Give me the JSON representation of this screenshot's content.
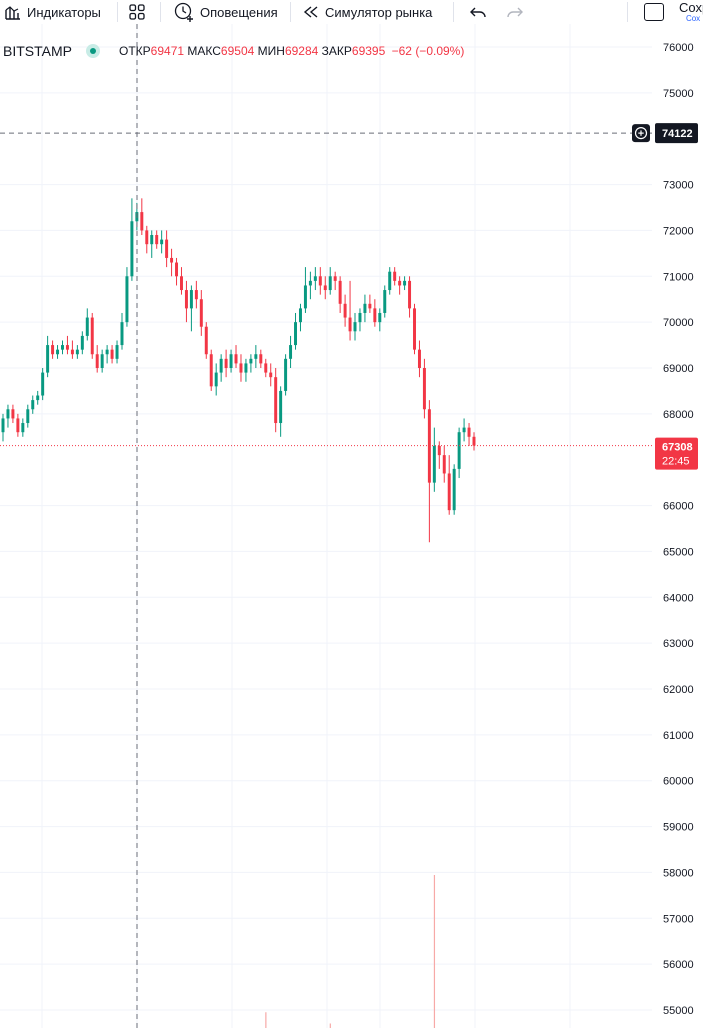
{
  "toolbar": {
    "indicators_label": "Индикаторы",
    "alerts_label": "Оповещения",
    "replay_label": "Симулятор рынка",
    "save_label": "Сохр",
    "save_sublabel": "Сох",
    "icons": [
      "indicators-icon",
      "templates-icon",
      "alert-clock-icon",
      "replay-icon",
      "undo-icon",
      "redo-icon"
    ]
  },
  "legend": {
    "symbol": "BITSTAMP",
    "status_color": "#089981",
    "open_label": "ОТКР",
    "open_value": "69471",
    "high_label": "МАКС",
    "high_value": "69504",
    "low_label": "МИН",
    "low_value": "69284",
    "close_label": "ЗАКР",
    "close_value": "69395",
    "change": "−62 (−0.09%)"
  },
  "crosshair": {
    "price_label": "74122",
    "add_icon": "plus-circle-icon"
  },
  "last_price": {
    "price": "67308",
    "countdown": "22:45",
    "color": "#f23645"
  },
  "chart_data": {
    "type": "candlestick",
    "price_axis": {
      "ticks": [
        76000,
        75000,
        73000,
        72000,
        71000,
        70000,
        69000,
        68000,
        66000,
        65000,
        64000,
        63000,
        62000,
        61000,
        60000,
        59000,
        58000,
        57000,
        56000,
        55000
      ],
      "range": [
        54800,
        76300
      ]
    },
    "up_color": "#089981",
    "down_color": "#f23645",
    "crosshair_price": 74122,
    "last_price": 67308,
    "candles": [
      {
        "o": 67600,
        "h": 68000,
        "l": 67400,
        "c": 67900
      },
      {
        "o": 67900,
        "h": 68200,
        "l": 67700,
        "c": 68100
      },
      {
        "o": 68100,
        "h": 68200,
        "l": 67800,
        "c": 67900
      },
      {
        "o": 67900,
        "h": 68000,
        "l": 67500,
        "c": 67600
      },
      {
        "o": 67600,
        "h": 67900,
        "l": 67500,
        "c": 67800
      },
      {
        "o": 67800,
        "h": 68200,
        "l": 67700,
        "c": 68100
      },
      {
        "o": 68100,
        "h": 68400,
        "l": 68000,
        "c": 68300
      },
      {
        "o": 68300,
        "h": 68500,
        "l": 68200,
        "c": 68400
      },
      {
        "o": 68400,
        "h": 69000,
        "l": 68300,
        "c": 68900
      },
      {
        "o": 68900,
        "h": 69700,
        "l": 68800,
        "c": 69500
      },
      {
        "o": 69500,
        "h": 69600,
        "l": 69200,
        "c": 69300
      },
      {
        "o": 69300,
        "h": 69500,
        "l": 69200,
        "c": 69400
      },
      {
        "o": 69400,
        "h": 69600,
        "l": 69300,
        "c": 69500
      },
      {
        "o": 69500,
        "h": 69700,
        "l": 69300,
        "c": 69400
      },
      {
        "o": 69400,
        "h": 69600,
        "l": 69200,
        "c": 69300
      },
      {
        "o": 69300,
        "h": 69500,
        "l": 69200,
        "c": 69400
      },
      {
        "o": 69400,
        "h": 69800,
        "l": 69300,
        "c": 69700
      },
      {
        "o": 69700,
        "h": 70300,
        "l": 69600,
        "c": 70100
      },
      {
        "o": 70100,
        "h": 70200,
        "l": 69200,
        "c": 69300
      },
      {
        "o": 69300,
        "h": 69500,
        "l": 68900,
        "c": 69000
      },
      {
        "o": 69000,
        "h": 69400,
        "l": 68900,
        "c": 69300
      },
      {
        "o": 69300,
        "h": 69500,
        "l": 69100,
        "c": 69400
      },
      {
        "o": 69400,
        "h": 69500,
        "l": 69100,
        "c": 69200
      },
      {
        "o": 69200,
        "h": 69600,
        "l": 69100,
        "c": 69500
      },
      {
        "o": 69500,
        "h": 70200,
        "l": 69400,
        "c": 70000
      },
      {
        "o": 70000,
        "h": 71200,
        "l": 69900,
        "c": 71000
      },
      {
        "o": 71000,
        "h": 72700,
        "l": 70900,
        "c": 72200
      },
      {
        "o": 72200,
        "h": 72600,
        "l": 72000,
        "c": 72400
      },
      {
        "o": 72400,
        "h": 72700,
        "l": 71900,
        "c": 72000
      },
      {
        "o": 72000,
        "h": 72100,
        "l": 71500,
        "c": 71700
      },
      {
        "o": 71700,
        "h": 72000,
        "l": 71400,
        "c": 71900
      },
      {
        "o": 71900,
        "h": 72000,
        "l": 71600,
        "c": 71700
      },
      {
        "o": 71700,
        "h": 72000,
        "l": 71500,
        "c": 71800
      },
      {
        "o": 71800,
        "h": 72000,
        "l": 71200,
        "c": 71400
      },
      {
        "o": 71400,
        "h": 71600,
        "l": 71000,
        "c": 71300
      },
      {
        "o": 71300,
        "h": 71400,
        "l": 70800,
        "c": 71000
      },
      {
        "o": 71000,
        "h": 71200,
        "l": 70600,
        "c": 70700
      },
      {
        "o": 70700,
        "h": 70900,
        "l": 70000,
        "c": 70300
      },
      {
        "o": 70300,
        "h": 70800,
        "l": 69800,
        "c": 70700
      },
      {
        "o": 70700,
        "h": 70900,
        "l": 70300,
        "c": 70500
      },
      {
        "o": 70500,
        "h": 70700,
        "l": 69700,
        "c": 69900
      },
      {
        "o": 69900,
        "h": 70000,
        "l": 69200,
        "c": 69300
      },
      {
        "o": 69300,
        "h": 69400,
        "l": 68500,
        "c": 68600
      },
      {
        "o": 68600,
        "h": 69100,
        "l": 68400,
        "c": 68900
      },
      {
        "o": 68900,
        "h": 69300,
        "l": 68700,
        "c": 69200
      },
      {
        "o": 69200,
        "h": 69400,
        "l": 68800,
        "c": 69000
      },
      {
        "o": 69000,
        "h": 69400,
        "l": 68900,
        "c": 69300
      },
      {
        "o": 69300,
        "h": 69500,
        "l": 69000,
        "c": 69100
      },
      {
        "o": 69100,
        "h": 69300,
        "l": 68700,
        "c": 68900
      },
      {
        "o": 68900,
        "h": 69200,
        "l": 68700,
        "c": 69100
      },
      {
        "o": 69100,
        "h": 69300,
        "l": 68900,
        "c": 69200
      },
      {
        "o": 69200,
        "h": 69500,
        "l": 69000,
        "c": 69300
      },
      {
        "o": 69300,
        "h": 69400,
        "l": 69000,
        "c": 69100
      },
      {
        "o": 69100,
        "h": 69200,
        "l": 68800,
        "c": 68900
      },
      {
        "o": 68900,
        "h": 69100,
        "l": 68600,
        "c": 68800
      },
      {
        "o": 68800,
        "h": 69000,
        "l": 67600,
        "c": 67800
      },
      {
        "o": 67800,
        "h": 68600,
        "l": 67500,
        "c": 68500
      },
      {
        "o": 68500,
        "h": 69300,
        "l": 68400,
        "c": 69200
      },
      {
        "o": 69200,
        "h": 69700,
        "l": 69000,
        "c": 69500
      },
      {
        "o": 69500,
        "h": 70200,
        "l": 69400,
        "c": 70000
      },
      {
        "o": 70000,
        "h": 70400,
        "l": 69800,
        "c": 70300
      },
      {
        "o": 70300,
        "h": 71200,
        "l": 70200,
        "c": 70800
      },
      {
        "o": 70800,
        "h": 71100,
        "l": 70500,
        "c": 70900
      },
      {
        "o": 70900,
        "h": 71200,
        "l": 70700,
        "c": 71000
      },
      {
        "o": 71000,
        "h": 71200,
        "l": 70600,
        "c": 70800
      },
      {
        "o": 70800,
        "h": 71000,
        "l": 70500,
        "c": 70700
      },
      {
        "o": 70700,
        "h": 71200,
        "l": 70600,
        "c": 71000
      },
      {
        "o": 71000,
        "h": 71100,
        "l": 70700,
        "c": 70900
      },
      {
        "o": 70900,
        "h": 71000,
        "l": 70200,
        "c": 70400
      },
      {
        "o": 70400,
        "h": 70600,
        "l": 69900,
        "c": 70100
      },
      {
        "o": 70100,
        "h": 70900,
        "l": 69600,
        "c": 69800
      },
      {
        "o": 69800,
        "h": 70200,
        "l": 69600,
        "c": 70000
      },
      {
        "o": 70000,
        "h": 70300,
        "l": 69800,
        "c": 70200
      },
      {
        "o": 70200,
        "h": 70600,
        "l": 70000,
        "c": 70400
      },
      {
        "o": 70400,
        "h": 70600,
        "l": 70200,
        "c": 70300
      },
      {
        "o": 70300,
        "h": 70500,
        "l": 69900,
        "c": 70000
      },
      {
        "o": 70000,
        "h": 70300,
        "l": 69800,
        "c": 70200
      },
      {
        "o": 70200,
        "h": 70800,
        "l": 70100,
        "c": 70700
      },
      {
        "o": 70700,
        "h": 71200,
        "l": 70600,
        "c": 71100
      },
      {
        "o": 71100,
        "h": 71200,
        "l": 70800,
        "c": 70900
      },
      {
        "o": 70900,
        "h": 71000,
        "l": 70600,
        "c": 70800
      },
      {
        "o": 70800,
        "h": 71000,
        "l": 70700,
        "c": 70900
      },
      {
        "o": 70900,
        "h": 71000,
        "l": 70100,
        "c": 70300
      },
      {
        "o": 70300,
        "h": 70400,
        "l": 69300,
        "c": 69400
      },
      {
        "o": 69400,
        "h": 69600,
        "l": 68800,
        "c": 69000
      },
      {
        "o": 69000,
        "h": 69200,
        "l": 67900,
        "c": 68100
      },
      {
        "o": 68100,
        "h": 68300,
        "l": 65200,
        "c": 66500
      },
      {
        "o": 66500,
        "h": 67700,
        "l": 66300,
        "c": 67300
      },
      {
        "o": 67300,
        "h": 67400,
        "l": 66800,
        "c": 67100
      },
      {
        "o": 67100,
        "h": 67300,
        "l": 66500,
        "c": 66700
      },
      {
        "o": 66700,
        "h": 67100,
        "l": 65800,
        "c": 65900
      },
      {
        "o": 65900,
        "h": 66900,
        "l": 65800,
        "c": 66800
      },
      {
        "o": 66800,
        "h": 67700,
        "l": 66600,
        "c": 67600
      },
      {
        "o": 67600,
        "h": 67900,
        "l": 67400,
        "c": 67700
      },
      {
        "o": 67700,
        "h": 67800,
        "l": 67300,
        "c": 67500
      },
      {
        "o": 67500,
        "h": 67600,
        "l": 67200,
        "c": 67308
      }
    ],
    "volume_spikes": [
      {
        "index": 53,
        "value": 0.35
      },
      {
        "index": 66,
        "value": 0.1
      },
      {
        "index": 87,
        "value": 3.4
      }
    ]
  }
}
